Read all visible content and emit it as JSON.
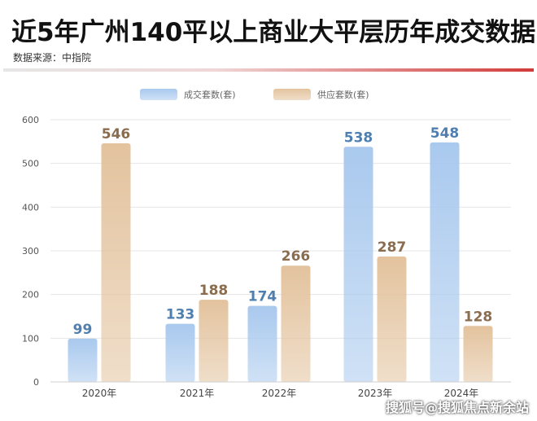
{
  "header": {
    "title": "近5年广州140平以上商业大平层历年成交数据",
    "source": "数据来源：中指院"
  },
  "watermark": "搜狐号@搜狐焦点新余站",
  "colors": {
    "series1": "#a9c9ee",
    "series2": "#e3c39e",
    "label1": "#4f7fae",
    "label2": "#8a6d4f"
  },
  "chart_data": {
    "type": "bar",
    "categories": [
      "2020年",
      "2021年",
      "2022年",
      "2023年",
      "2024年"
    ],
    "series": [
      {
        "name": "成交套数(套)",
        "values": [
          99,
          133,
          174,
          538,
          548
        ]
      },
      {
        "name": "供应套数(套)",
        "values": [
          546,
          188,
          266,
          287,
          128
        ]
      }
    ],
    "ylim": [
      0,
      600
    ],
    "yticks": [
      0,
      100,
      200,
      300,
      400,
      500,
      600
    ],
    "grid": true,
    "legend_position": "top-center"
  }
}
